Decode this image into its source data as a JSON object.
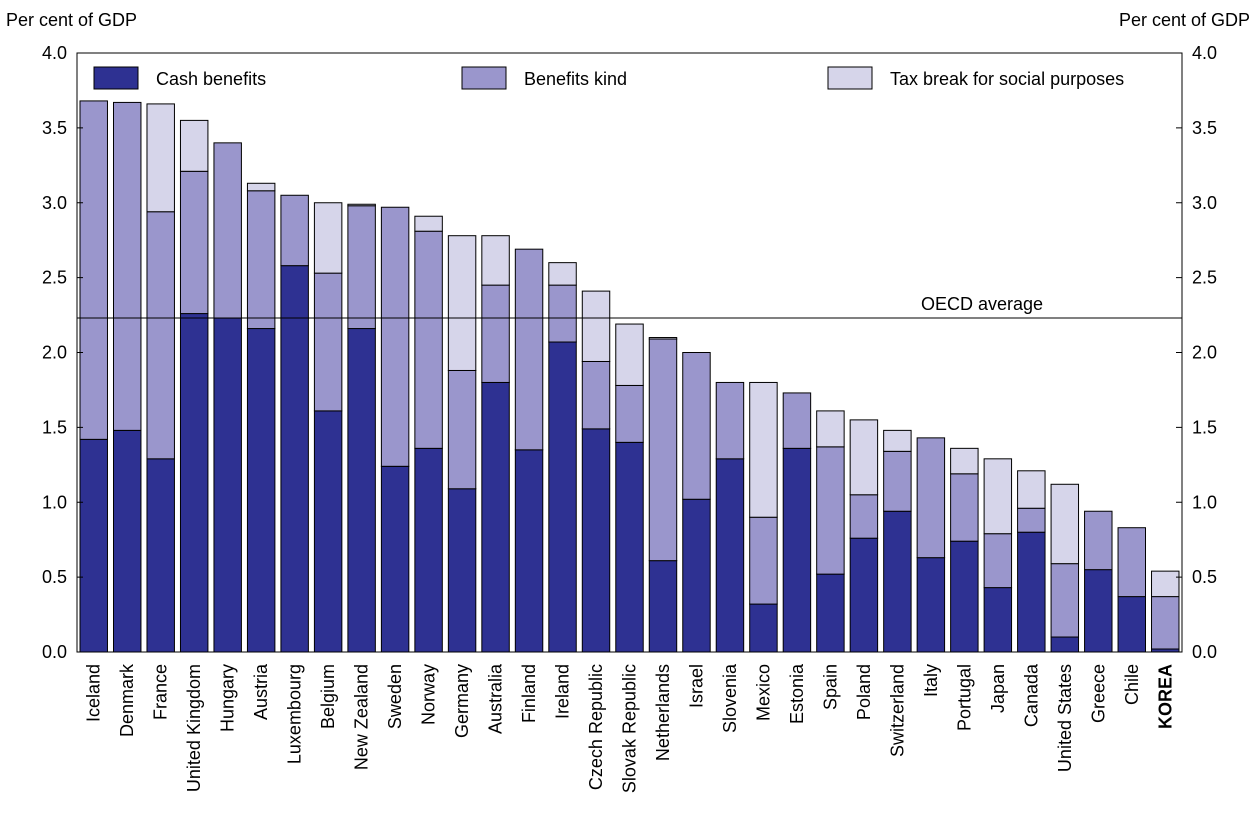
{
  "chart_data": {
    "type": "bar",
    "stacked": true,
    "title": "",
    "y_unit_left": "Per cent of GDP",
    "y_unit_right": "Per cent of GDP",
    "ylim": [
      0,
      4.0
    ],
    "yticks": [
      "0.0",
      "0.5",
      "1.0",
      "1.5",
      "2.0",
      "2.5",
      "3.0",
      "3.5",
      "4.0"
    ],
    "grid": false,
    "legend_position": "top",
    "categories": [
      "Iceland",
      "Denmark",
      "France",
      "United Kingdom",
      "Hungary",
      "Austria",
      "Luxembourg",
      "Belgium",
      "New Zealand",
      "Sweden",
      "Norway",
      "Germany",
      "Australia",
      "Finland",
      "Ireland",
      "Czech Republic",
      "Slovak Republic",
      "Netherlands",
      "Israel",
      "Slovenia",
      "Mexico",
      "Estonia",
      "Spain",
      "Poland",
      "Switzerland",
      "Italy",
      "Portugal",
      "Japan",
      "Canada",
      "United States",
      "Greece",
      "Chile",
      "KOREA"
    ],
    "highlight_category": "KOREA",
    "series": [
      {
        "name": "Cash benefits",
        "color": "#2e3192",
        "values": [
          1.42,
          1.48,
          1.29,
          2.26,
          2.23,
          2.16,
          2.58,
          1.61,
          2.16,
          1.24,
          1.36,
          1.09,
          1.8,
          1.35,
          2.07,
          1.49,
          1.4,
          0.61,
          1.02,
          1.29,
          0.32,
          1.36,
          0.52,
          0.76,
          0.94,
          0.63,
          0.74,
          0.43,
          0.8,
          0.1,
          0.55,
          0.37,
          0.02
        ]
      },
      {
        "name": "Benefits kind",
        "color": "#9a96cc",
        "values": [
          2.26,
          2.19,
          1.65,
          0.95,
          1.17,
          0.92,
          0.47,
          0.92,
          0.82,
          1.73,
          1.45,
          0.79,
          0.65,
          1.34,
          0.38,
          0.45,
          0.38,
          1.48,
          0.98,
          0.51,
          0.58,
          0.37,
          0.85,
          0.29,
          0.4,
          0.8,
          0.45,
          0.36,
          0.16,
          0.49,
          0.39,
          0.46,
          0.35
        ]
      },
      {
        "name": "Tax break for social purposes",
        "color": "#d6d5ea",
        "values": [
          0,
          0,
          0.72,
          0.34,
          0,
          0.05,
          0,
          0.47,
          0.01,
          0,
          0.1,
          0.9,
          0.33,
          0,
          0.15,
          0.47,
          0.41,
          0.01,
          0,
          0,
          0.9,
          0,
          0.24,
          0.5,
          0.14,
          0,
          0.17,
          0.5,
          0.25,
          0.53,
          0,
          0,
          0.17
        ]
      }
    ],
    "reference_line": {
      "label": "OECD average",
      "value": 2.23
    }
  }
}
